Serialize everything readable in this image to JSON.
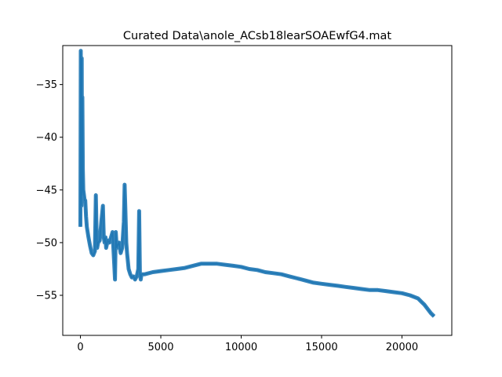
{
  "chart_data": {
    "type": "line",
    "title": "Curated Data\\anole_ACsb18learSOAEwfG4.mat",
    "xlabel": "",
    "ylabel": "",
    "xlim": [
      -1100,
      23100
    ],
    "ylim": [
      -58.8,
      -31.3
    ],
    "xticks": [
      0,
      5000,
      10000,
      15000,
      20000
    ],
    "xtick_labels": [
      "0",
      "5000",
      "10000",
      "15000",
      "20000"
    ],
    "yticks": [
      -35,
      -40,
      -45,
      -50,
      -55
    ],
    "ytick_labels": [
      "−35",
      "−40",
      "−45",
      "−50",
      "−55"
    ],
    "grid": false,
    "legend": "none",
    "line_color": "#1f77b4",
    "series": [
      {
        "x": [
          0,
          20,
          40,
          60,
          80,
          100,
          120,
          150,
          180,
          220,
          260,
          300,
          350,
          400,
          500,
          600,
          700,
          800,
          900,
          960,
          1000,
          1040,
          1100,
          1200,
          1300,
          1400,
          1450,
          1500,
          1560,
          1600,
          1700,
          1800,
          1900,
          2000,
          2100,
          2150,
          2200,
          2260,
          2300,
          2400,
          2500,
          2600,
          2700,
          2750,
          2800,
          2850,
          2900,
          3000,
          3100,
          3200,
          3300,
          3400,
          3500,
          3600,
          3650,
          3700,
          3750,
          3800,
          4000,
          4500,
          5000,
          5500,
          6000,
          6500,
          7000,
          7500,
          8000,
          8500,
          9000,
          9500,
          10000,
          10500,
          11000,
          11500,
          12000,
          12500,
          13000,
          13500,
          14000,
          14500,
          15000,
          15500,
          16000,
          16500,
          17000,
          17500,
          18000,
          18500,
          19000,
          19500,
          20000,
          20500,
          21000,
          21200,
          21400,
          21600,
          21800,
          22000
        ],
        "y": [
          -48.5,
          -31.8,
          -42.0,
          -46.5,
          -32.5,
          -45.5,
          -36.2,
          -43.0,
          -45.0,
          -45.5,
          -46.0,
          -46.0,
          -47.5,
          -48.5,
          -49.5,
          -50.3,
          -51.0,
          -51.2,
          -50.8,
          -45.5,
          -48.5,
          -50.5,
          -50.0,
          -49.8,
          -48.0,
          -46.5,
          -49.5,
          -50.0,
          -49.5,
          -50.5,
          -49.8,
          -50.0,
          -49.5,
          -49.0,
          -52.0,
          -53.5,
          -49.0,
          -50.5,
          -50.3,
          -50.0,
          -51.0,
          -50.5,
          -48.0,
          -44.5,
          -47.0,
          -50.0,
          -51.0,
          -52.5,
          -53.0,
          -53.3,
          -53.2,
          -53.5,
          -53.2,
          -52.5,
          -47.0,
          -53.0,
          -53.5,
          -53.0,
          -53.0,
          -52.8,
          -52.7,
          -52.6,
          -52.5,
          -52.4,
          -52.2,
          -52.0,
          -52.0,
          -52.0,
          -52.1,
          -52.2,
          -52.3,
          -52.5,
          -52.6,
          -52.8,
          -52.9,
          -53.0,
          -53.2,
          -53.4,
          -53.6,
          -53.8,
          -53.9,
          -54.0,
          -54.1,
          -54.2,
          -54.3,
          -54.4,
          -54.5,
          -54.5,
          -54.6,
          -54.7,
          -54.8,
          -55.0,
          -55.3,
          -55.6,
          -55.9,
          -56.3,
          -56.7,
          -57.0
        ]
      }
    ]
  }
}
